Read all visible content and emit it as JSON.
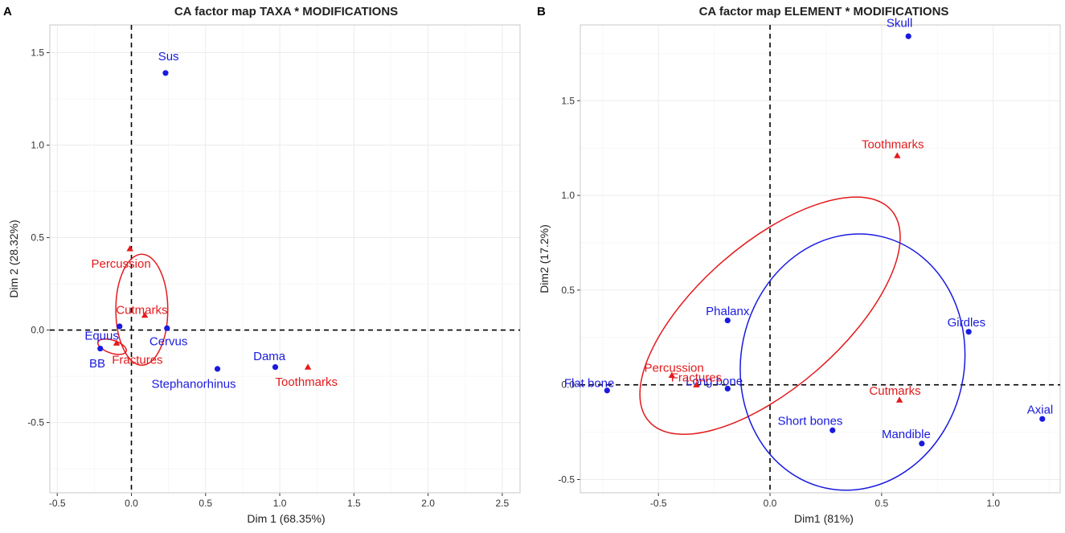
{
  "chart_data": [
    {
      "type": "scatter",
      "panel": "A",
      "title": "CA factor map TAXA * MODIFICATIONS",
      "xlabel": "Dim 1 (68.35%)",
      "ylabel": "Dim 2 (28.32%)",
      "xlim": [
        -0.55,
        2.62
      ],
      "ylim": [
        -0.88,
        1.65
      ],
      "xticks": [
        -0.5,
        0.0,
        0.5,
        1.0,
        1.5,
        2.0,
        2.5
      ],
      "xtick_labels": [
        "-0.5",
        "0.0",
        "0.5",
        "1.0",
        "1.5",
        "2.0",
        "2.5"
      ],
      "yticks": [
        -0.5,
        0.0,
        0.5,
        1.0,
        1.5
      ],
      "ytick_labels": [
        "-0.5",
        "0.0",
        "0.5",
        "1.0",
        "1.5"
      ],
      "grid": true,
      "colors": {
        "rows": "#1a1adf",
        "cols": "#e31a1c",
        "grid": "#ebebeb"
      },
      "series": [
        {
          "name": "rows",
          "marker": "circle",
          "points": [
            {
              "label": "Sus",
              "x": 0.23,
              "y": 1.39,
              "lx": 0.25,
              "ly": 1.48
            },
            {
              "label": "Equus",
              "x": -0.08,
              "y": 0.02,
              "lx": -0.2,
              "ly": -0.03
            },
            {
              "label": "BB",
              "x": -0.21,
              "y": -0.1,
              "lx": -0.23,
              "ly": -0.18
            },
            {
              "label": "Cervus",
              "x": 0.24,
              "y": 0.01,
              "lx": 0.25,
              "ly": -0.06
            },
            {
              "label": "Stephanorhinus",
              "x": 0.58,
              "y": -0.21,
              "lx": 0.42,
              "ly": -0.29
            },
            {
              "label": "Dama",
              "x": 0.97,
              "y": -0.2,
              "lx": 0.93,
              "ly": -0.14
            }
          ]
        },
        {
          "name": "cols",
          "marker": "triangle",
          "points": [
            {
              "label": "Percussion",
              "x": -0.01,
              "y": 0.44,
              "lx": -0.07,
              "ly": 0.36
            },
            {
              "label": "Cutmarks",
              "x": 0.09,
              "y": 0.08,
              "lx": 0.07,
              "ly": 0.11
            },
            {
              "label": "Fractures",
              "x": -0.1,
              "y": -0.07,
              "lx": 0.04,
              "ly": -0.16
            },
            {
              "label": "Toothmarks",
              "x": 1.19,
              "y": -0.2,
              "lx": 1.18,
              "ly": -0.28
            }
          ]
        }
      ],
      "ellipses": [
        {
          "cx": 0.07,
          "cy": 0.11,
          "rx": 0.175,
          "ry": 0.3,
          "angle": 0
        },
        {
          "cx": -0.13,
          "cy": -0.09,
          "rx": 0.1,
          "ry": 0.035,
          "angle": 18
        }
      ]
    },
    {
      "type": "scatter",
      "panel": "B",
      "title": "CA factor map ELEMENT * MODIFICATIONS",
      "xlabel": "Dim1 (81%)",
      "ylabel": "Dim2 (17.2%)",
      "xlim": [
        -0.85,
        1.3
      ],
      "ylim": [
        -0.57,
        1.9
      ],
      "xticks": [
        -0.5,
        0.0,
        0.5,
        1.0
      ],
      "xtick_labels": [
        "-0.5",
        "0.0",
        "0.5",
        "1.0"
      ],
      "yticks": [
        -0.5,
        0.0,
        0.5,
        1.0,
        1.5
      ],
      "ytick_labels": [
        "-0.5",
        "0.0",
        "0.5",
        "1.0",
        "1.5"
      ],
      "grid": true,
      "colors": {
        "rows": "#1a1adf",
        "cols": "#e31a1c",
        "grid": "#ebebeb"
      },
      "series": [
        {
          "name": "rows",
          "marker": "circle",
          "points": [
            {
              "label": "Skull",
              "x": 0.62,
              "y": 1.84,
              "lx": 0.58,
              "ly": 1.91
            },
            {
              "label": "Phalanx",
              "x": -0.19,
              "y": 0.34,
              "lx": -0.19,
              "ly": 0.39
            },
            {
              "label": "Girdles",
              "x": 0.89,
              "y": 0.28,
              "lx": 0.88,
              "ly": 0.33
            },
            {
              "label": "Flat bone",
              "x": -0.73,
              "y": -0.03,
              "lx": -0.81,
              "ly": 0.01
            },
            {
              "label": "Long bone",
              "x": -0.19,
              "y": -0.02,
              "lx": -0.25,
              "ly": 0.02
            },
            {
              "label": "Short bones",
              "x": 0.28,
              "y": -0.24,
              "lx": 0.18,
              "ly": -0.19
            },
            {
              "label": "Mandible",
              "x": 0.68,
              "y": -0.31,
              "lx": 0.61,
              "ly": -0.26
            },
            {
              "label": "Axial",
              "x": 1.22,
              "y": -0.18,
              "lx": 1.21,
              "ly": -0.13
            }
          ]
        },
        {
          "name": "cols",
          "marker": "triangle",
          "points": [
            {
              "label": "Toothmarks",
              "x": 0.57,
              "y": 1.21,
              "lx": 0.55,
              "ly": 1.27
            },
            {
              "label": "Percussion",
              "x": -0.44,
              "y": 0.05,
              "lx": -0.43,
              "ly": 0.09
            },
            {
              "label": "Fractures",
              "x": -0.33,
              "y": 0.0,
              "lx": -0.33,
              "ly": 0.04
            },
            {
              "label": "Cutmarks",
              "x": 0.58,
              "y": -0.08,
              "lx": 0.56,
              "ly": -0.03
            }
          ]
        }
      ],
      "ellipses": [
        {
          "cx": 0.0,
          "cy": 0.365,
          "rx": 0.72,
          "ry": 0.38,
          "angle": -41,
          "color": "cols"
        },
        {
          "cx": 0.37,
          "cy": 0.12,
          "rx": 0.5,
          "ry": 0.68,
          "angle": 12,
          "color": "rows"
        }
      ]
    }
  ]
}
